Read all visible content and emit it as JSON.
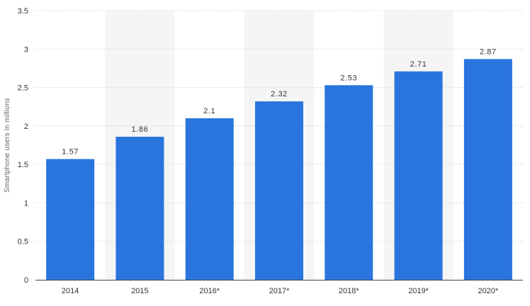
{
  "chart_data": {
    "type": "bar",
    "categories": [
      "2014",
      "2015",
      "2016*",
      "2017*",
      "2018*",
      "2019*",
      "2020*"
    ],
    "values": [
      1.57,
      1.86,
      2.1,
      2.32,
      2.53,
      2.71,
      2.87
    ],
    "value_labels": [
      "1.57",
      "1.86",
      "2.1",
      "2.32",
      "2.53",
      "2.71",
      "2.87"
    ],
    "ylabel": "Smartphone users in millions",
    "xlabel": "",
    "ylim": [
      0,
      3.5
    ],
    "yticks": [
      "0",
      "0.5",
      "1",
      "1.5",
      "2",
      "2.5",
      "3",
      "3.5"
    ],
    "grid": true,
    "grid_style": "dotted",
    "alternate_column_shading": true,
    "colors": {
      "bar": "#2a75dd",
      "grid": "#c8c8c8",
      "shading": "#f5f5f5",
      "axis": "#444444"
    }
  }
}
